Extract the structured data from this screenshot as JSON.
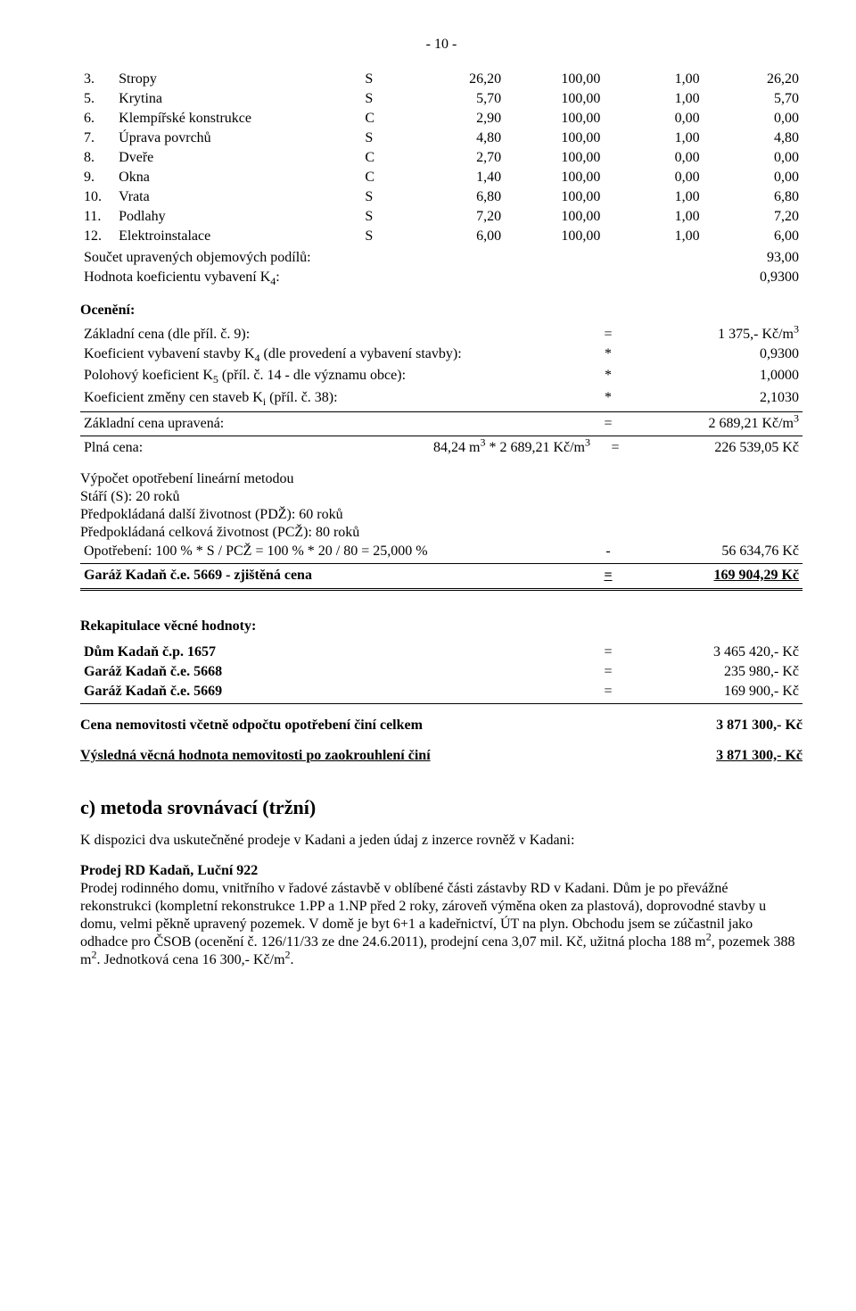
{
  "page_number": "- 10 -",
  "construction_rows": [
    {
      "idx": "3.",
      "name": "Stropy",
      "type": "S",
      "c1": "26,20",
      "c2": "100,00",
      "c3": "1,00",
      "c4": "26,20"
    },
    {
      "idx": "5.",
      "name": "Krytina",
      "type": "S",
      "c1": "5,70",
      "c2": "100,00",
      "c3": "1,00",
      "c4": "5,70"
    },
    {
      "idx": "6.",
      "name": "Klempířské konstrukce",
      "type": "C",
      "c1": "2,90",
      "c2": "100,00",
      "c3": "0,00",
      "c4": "0,00"
    },
    {
      "idx": "7.",
      "name": "Úprava povrchů",
      "type": "S",
      "c1": "4,80",
      "c2": "100,00",
      "c3": "1,00",
      "c4": "4,80"
    },
    {
      "idx": "8.",
      "name": "Dveře",
      "type": "C",
      "c1": "2,70",
      "c2": "100,00",
      "c3": "0,00",
      "c4": "0,00"
    },
    {
      "idx": "9.",
      "name": "Okna",
      "type": "C",
      "c1": "1,40",
      "c2": "100,00",
      "c3": "0,00",
      "c4": "0,00"
    },
    {
      "idx": "10.",
      "name": "Vrata",
      "type": "S",
      "c1": "6,80",
      "c2": "100,00",
      "c3": "1,00",
      "c4": "6,80"
    },
    {
      "idx": "11.",
      "name": "Podlahy",
      "type": "S",
      "c1": "7,20",
      "c2": "100,00",
      "c3": "1,00",
      "c4": "7,20"
    },
    {
      "idx": "12.",
      "name": "Elektroinstalace",
      "type": "S",
      "c1": "6,00",
      "c2": "100,00",
      "c3": "1,00",
      "c4": "6,00"
    }
  ],
  "sum_label": "Součet upravených objemových podílů:",
  "sum_value": "93,00",
  "k4_label": "Hodnota koeficientu vybavení K",
  "k4_sub": "4",
  "k4_suffix": ":",
  "k4_value": "0,9300",
  "oceneni_heading": "Ocenění:",
  "coef_rows": [
    {
      "label": "Základní cena (dle příl. č. 9):",
      "op": "=",
      "val": "1 375,- Kč/m",
      "sup": "3"
    },
    {
      "label_pre": "Koeficient vybavení stavby K",
      "label_sub": "4",
      "label_post": " (dle provedení a vybavení stavby):",
      "op": "*",
      "val": "0,9300",
      "sup": ""
    },
    {
      "label_pre": "Polohový koeficient K",
      "label_sub": "5",
      "label_post": " (příl. č. 14 - dle významu obce):",
      "op": "*",
      "val": "1,0000",
      "sup": ""
    },
    {
      "label_pre": "Koeficient změny cen staveb K",
      "label_sub": "i",
      "label_post": " (příl. č. 38):",
      "op": "*",
      "val": "2,1030",
      "sup": ""
    }
  ],
  "zcu_label": "Základní cena upravená:",
  "zcu_op": "=",
  "zcu_val": "2 689,21 Kč/m",
  "zcu_sup": "3",
  "plna_label": "Plná cena:",
  "plna_mid_a": "84,24 m",
  "plna_mid_sup1": "3",
  "plna_mid_b": " * 2 689,21 Kč/m",
  "plna_mid_sup2": "3",
  "plna_op": "=",
  "plna_val": "226 539,05 Kč",
  "wear_heading": "Výpočet opotřebení lineární metodou",
  "wear_l1": "Stáří (S): 20 roků",
  "wear_l2": "Předpokládaná další životnost (PDŽ): 60 roků",
  "wear_l3": "Předpokládaná celková životnost (PCŽ): 80 roků",
  "wear_l4": "Opotřebení: 100 % * S / PCŽ = 100 % * 20 / 80 = 25,000 %",
  "wear_op": "-",
  "wear_val": "56 634,76 Kč",
  "final_label": "Garáž Kadaň č.e. 5669 - zjištěná cena",
  "final_op": "=",
  "final_val": "169 904,29 Kč",
  "rekap_heading": "Rekapitulace věcné hodnoty:",
  "rekap_rows": [
    {
      "label": "Dům Kadaň č.p. 1657",
      "op": "=",
      "val": "3 465 420,- Kč"
    },
    {
      "label": "Garáž Kadaň č.e. 5668",
      "op": "=",
      "val": "235 980,- Kč"
    },
    {
      "label": "Garáž Kadaň č.e. 5669",
      "op": "=",
      "val": "169 900,- Kč"
    }
  ],
  "cena_celkem_label": "Cena nemovitosti včetně odpočtu opotřebení činí celkem",
  "cena_celkem_val": "3 871 300,- Kč",
  "vysledna_label": "Výsledná věcná hodnota nemovitosti po zaokrouhlení činí",
  "vysledna_val": "3 871 300,- Kč",
  "section_c_heading": "c) metoda srovnávací (tržní)",
  "section_c_intro": "K dispozici dva uskutečněné prodeje v Kadani a jeden údaj z inzerce rovněž v Kadani:",
  "prodej_heading": "Prodej RD Kadaň, Luční 922",
  "prodej_p1a": "Prodej rodinného domu, vnitřního v řadové zástavbě v oblíbené části zástavby RD v Kadani. Dům je po převážné rekonstrukci (kompletní rekonstrukce 1.PP a 1.NP před 2 roky, zároveň výměna oken za plastová), doprovodné stavby u domu, velmi pěkně upravený pozemek. V domě je byt 6+1 a kadeřnictví, ÚT na plyn. Obchodu jsem se zúčastnil jako odhadce pro ČSOB (ocenění č. 126/11/33 ze dne 24.6.2011), prodejní cena 3,07 mil. Kč, užitná plocha 188 m",
  "prodej_p1b": ", pozemek 388 m",
  "prodej_p1c": ". Jednotková cena 16 300,- Kč/m",
  "prodej_p1d": "."
}
